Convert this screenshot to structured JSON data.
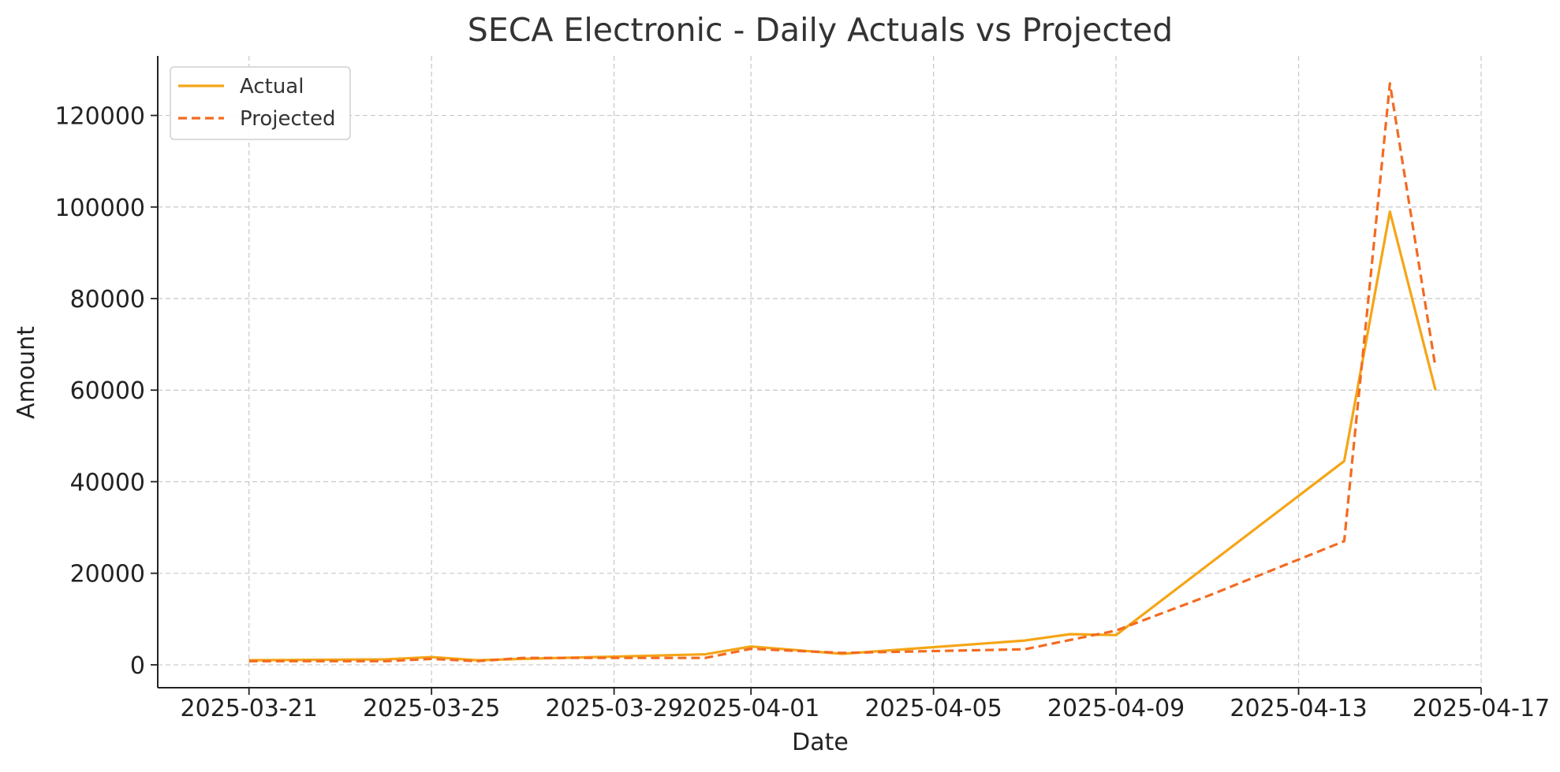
{
  "chart_data": {
    "type": "line",
    "title": "SECA Electronic - Daily Actuals vs Projected",
    "xlabel": "Date",
    "ylabel": "Amount",
    "x_type": "date",
    "xlim": [
      "2025-03-19",
      "2025-04-17"
    ],
    "ylim": [
      -5000,
      133000
    ],
    "x_ticks": [
      "2025-03-21",
      "2025-03-25",
      "2025-03-29",
      "2025-04-01",
      "2025-04-05",
      "2025-04-09",
      "2025-04-13",
      "2025-04-17"
    ],
    "y_ticks": [
      0,
      20000,
      40000,
      60000,
      80000,
      100000,
      120000
    ],
    "grid": true,
    "legend_position": "top-left",
    "series": [
      {
        "name": "Actual",
        "color": "#F5A516",
        "style": "solid",
        "points": [
          [
            "2025-03-21",
            1000
          ],
          [
            "2025-03-24",
            1200
          ],
          [
            "2025-03-25",
            1700
          ],
          [
            "2025-03-26",
            1000
          ],
          [
            "2025-03-27",
            1300
          ],
          [
            "2025-03-31",
            2300
          ],
          [
            "2025-04-01",
            4000
          ],
          [
            "2025-04-03",
            2400
          ],
          [
            "2025-04-07",
            5300
          ],
          [
            "2025-04-08",
            6700
          ],
          [
            "2025-04-09",
            6500
          ],
          [
            "2025-04-14",
            44500
          ],
          [
            "2025-04-15",
            99000
          ],
          [
            "2025-04-16",
            60000
          ]
        ]
      },
      {
        "name": "Projected",
        "color": "#F26B21",
        "style": "dashed",
        "points": [
          [
            "2025-03-21",
            800
          ],
          [
            "2025-03-24",
            800
          ],
          [
            "2025-03-25",
            1300
          ],
          [
            "2025-03-26",
            800
          ],
          [
            "2025-03-27",
            1500
          ],
          [
            "2025-03-31",
            1500
          ],
          [
            "2025-04-01",
            3500
          ],
          [
            "2025-04-03",
            2600
          ],
          [
            "2025-04-07",
            3400
          ],
          [
            "2025-04-09",
            7500
          ],
          [
            "2025-04-11",
            15000
          ],
          [
            "2025-04-14",
            27000
          ],
          [
            "2025-04-15",
            127000
          ],
          [
            "2025-04-16",
            65000
          ]
        ]
      }
    ]
  }
}
